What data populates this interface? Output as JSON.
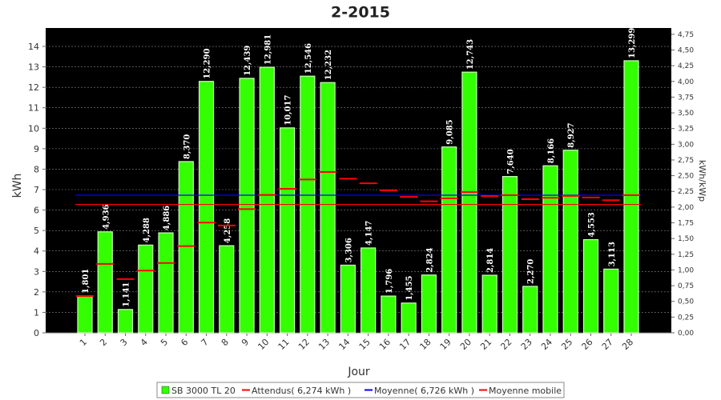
{
  "chart_data": {
    "type": "bar",
    "title": "2-2015",
    "x_label": "Jour",
    "y_label": "kWh",
    "y2_label": "kWh/kWp",
    "categories": [
      "1",
      "2",
      "3",
      "4",
      "5",
      "6",
      "7",
      "8",
      "9",
      "10",
      "11",
      "12",
      "13",
      "14",
      "15",
      "16",
      "17",
      "18",
      "19",
      "20",
      "21",
      "22",
      "23",
      "24",
      "25",
      "26",
      "27",
      "28"
    ],
    "series": [
      {
        "name": "SB 3000 TL 20",
        "color": "#33ff00",
        "values": [
          1.801,
          4.936,
          1.141,
          4.288,
          4.886,
          8.37,
          12.29,
          4.258,
          12.439,
          12.981,
          10.017,
          12.546,
          12.232,
          3.306,
          4.147,
          1.796,
          1.455,
          2.824,
          9.085,
          12.743,
          2.814,
          7.64,
          2.27,
          8.166,
          8.927,
          4.553,
          3.113,
          13.299
        ],
        "value_labels": [
          "1,801",
          "4,936",
          "1,141",
          "4,288",
          "4,886",
          "8,370",
          "12,290",
          "4,258",
          "12,439",
          "12,981",
          "10,017",
          "12,546",
          "12,232",
          "3,306",
          "4,147",
          "1,796",
          "1,455",
          "2,824",
          "9,085",
          "12,743",
          "2,814",
          "7,640",
          "2,270",
          "8,166",
          "8,927",
          "4,553",
          "3,113",
          "13,299"
        ]
      },
      {
        "name": "Attendus( 6,274 kWh )",
        "color": "#ff0000",
        "value": 6.274
      },
      {
        "name": "Moyenne( 6,726 kWh )",
        "color": "#0000ff",
        "value": 6.726
      },
      {
        "name": "Moyenne mobile",
        "color": "#ff0000",
        "values": [
          1.801,
          3.369,
          2.626,
          3.042,
          3.41,
          4.237,
          5.387,
          5.246,
          6.045,
          6.739,
          7.037,
          7.496,
          7.86,
          7.535,
          7.309,
          6.965,
          6.641,
          6.428,
          6.568,
          6.877,
          6.684,
          6.727,
          6.533,
          6.601,
          6.694,
          6.612,
          6.482,
          6.726
        ]
      }
    ],
    "ylim": [
      0,
      14.9
    ],
    "yticks": [
      0,
      1,
      2,
      3,
      4,
      5,
      6,
      7,
      8,
      9,
      10,
      11,
      12,
      13,
      14
    ],
    "y2lim": [
      0,
      4.85
    ],
    "y2ticks": [
      {
        "value": 0,
        "label": "0,00"
      },
      {
        "value": 0.25,
        "label": "0,25"
      },
      {
        "value": 0.5,
        "label": "0,50"
      },
      {
        "value": 0.75,
        "label": "0,75"
      },
      {
        "value": 1,
        "label": "1,00"
      },
      {
        "value": 1.25,
        "label": "1,25"
      },
      {
        "value": 1.5,
        "label": "1,50"
      },
      {
        "value": 1.75,
        "label": "1,75"
      },
      {
        "value": 2,
        "label": "2,00"
      },
      {
        "value": 2.25,
        "label": "2,25"
      },
      {
        "value": 2.5,
        "label": "2,50"
      },
      {
        "value": 2.75,
        "label": "2,75"
      },
      {
        "value": 3,
        "label": "3,00"
      },
      {
        "value": 3.25,
        "label": "3,25"
      },
      {
        "value": 3.5,
        "label": "3,50"
      },
      {
        "value": 3.75,
        "label": "3,75"
      },
      {
        "value": 4,
        "label": "4,00"
      },
      {
        "value": 4.25,
        "label": "4,25"
      },
      {
        "value": 4.5,
        "label": "4,50"
      },
      {
        "value": 4.75,
        "label": "4,75"
      }
    ],
    "grid": true,
    "background": "#000000",
    "legend": "bottom"
  }
}
